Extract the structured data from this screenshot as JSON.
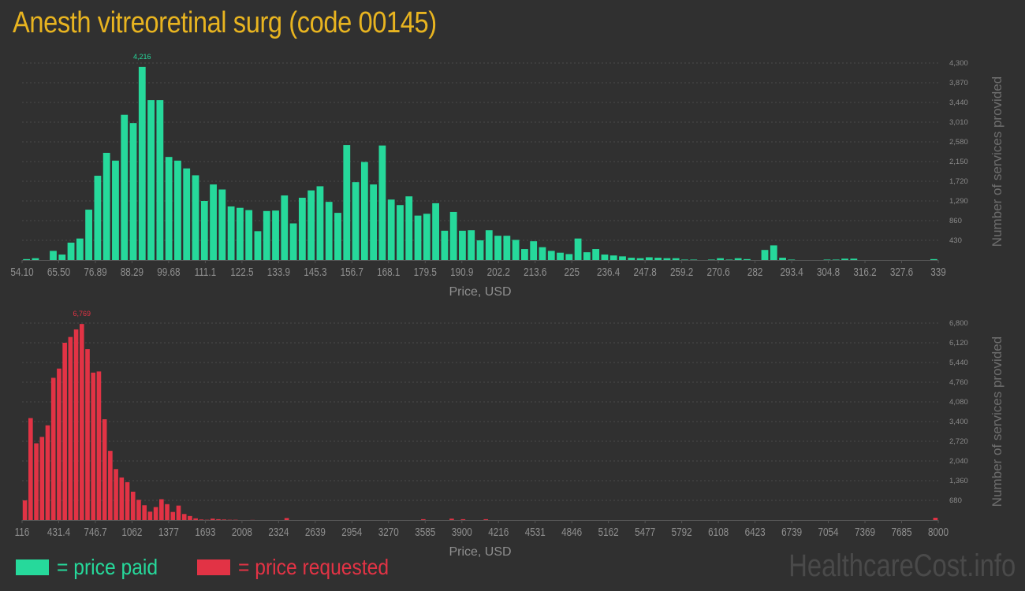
{
  "title": "Anesth vitreoretinal surg (code 00145)",
  "legend": {
    "paid_label": "= price paid",
    "requested_label": "= price requested",
    "paid_color": "#26d99b",
    "requested_color": "#e23345"
  },
  "watermark": "HealthcareCost.info",
  "chart_data": [
    {
      "type": "bar",
      "name": "price paid",
      "color": "#26d99b",
      "xlabel": "Price, USD",
      "ylabel": "Number of services provided",
      "x_tick_labels": [
        "54.10",
        "65.50",
        "76.89",
        "88.29",
        "99.68",
        "111.1",
        "122.5",
        "133.9",
        "145.3",
        "156.7",
        "168.1",
        "179.5",
        "190.9",
        "202.2",
        "213.6",
        "225",
        "236.4",
        "247.8",
        "259.2",
        "270.6",
        "282",
        "293.4",
        "304.8",
        "316.2",
        "327.6",
        "339"
      ],
      "y_ticks": [
        430,
        860,
        1290,
        1720,
        2150,
        2580,
        3010,
        3440,
        3870,
        4300
      ],
      "ylim": [
        0,
        4300
      ],
      "max_label": "4,216",
      "values": [
        20,
        40,
        0,
        200,
        120,
        380,
        470,
        1100,
        1840,
        2340,
        2170,
        3170,
        2990,
        4216,
        3490,
        3490,
        2250,
        2170,
        2000,
        1850,
        1290,
        1650,
        1540,
        1170,
        1140,
        1090,
        630,
        1070,
        1080,
        1410,
        800,
        1360,
        1520,
        1610,
        1270,
        1030,
        2510,
        1700,
        2140,
        1650,
        2500,
        1320,
        1200,
        1390,
        970,
        1010,
        1240,
        640,
        1050,
        640,
        650,
        430,
        650,
        530,
        530,
        440,
        240,
        410,
        280,
        200,
        160,
        130,
        470,
        170,
        240,
        120,
        100,
        80,
        50,
        40,
        60,
        50,
        40,
        40,
        10,
        10,
        0,
        10,
        40,
        10,
        40,
        20,
        0,
        220,
        320,
        50,
        10,
        0,
        0,
        0,
        10,
        10,
        30,
        30,
        0,
        0,
        0,
        0,
        0,
        0,
        0,
        0,
        20
      ],
      "grid": true
    },
    {
      "type": "bar",
      "name": "price requested",
      "color": "#e23345",
      "xlabel": "Price, USD",
      "ylabel": "Number of services provided",
      "x_tick_labels": [
        "116",
        "431.4",
        "746.7",
        "1062",
        "1377",
        "1693",
        "2008",
        "2324",
        "2639",
        "2954",
        "3270",
        "3585",
        "3900",
        "4216",
        "4531",
        "4846",
        "5162",
        "5477",
        "5792",
        "6108",
        "6423",
        "6739",
        "7054",
        "7369",
        "7685",
        "8000"
      ],
      "y_ticks": [
        680,
        1360,
        2040,
        2720,
        3400,
        4080,
        4760,
        5440,
        6120,
        6800
      ],
      "ylim": [
        0,
        6800
      ],
      "max_label": "6,769",
      "values": [
        680,
        3520,
        2650,
        2870,
        3270,
        4910,
        5230,
        6120,
        6320,
        6580,
        6769,
        5900,
        5090,
        5130,
        3480,
        2390,
        1760,
        1470,
        1310,
        980,
        700,
        510,
        290,
        450,
        720,
        550,
        280,
        500,
        210,
        140,
        60,
        20,
        10,
        50,
        30,
        20,
        10,
        10,
        0,
        0,
        5,
        0,
        0,
        0,
        0,
        0,
        70,
        0,
        0,
        0,
        0,
        0,
        0,
        0,
        0,
        0,
        0,
        0,
        0,
        0,
        0,
        0,
        0,
        0,
        0,
        0,
        0,
        0,
        0,
        0,
        30,
        0,
        0,
        0,
        0,
        50,
        0,
        30,
        0,
        0,
        0,
        30,
        0,
        0,
        0,
        0,
        0,
        0,
        0,
        0,
        0,
        0,
        0,
        0,
        0,
        0,
        0,
        0,
        0,
        0,
        0,
        0,
        0,
        0,
        0,
        0,
        0,
        0,
        0,
        0,
        0,
        0,
        0,
        0,
        0,
        0,
        0,
        0,
        0,
        0,
        0,
        0,
        0,
        0,
        0,
        0,
        0,
        0,
        0,
        0,
        0,
        0,
        0,
        0,
        0,
        0,
        0,
        0,
        0,
        0,
        0,
        0,
        0,
        0,
        0,
        0,
        0,
        0,
        0,
        0,
        0,
        0,
        0,
        0,
        0,
        0,
        0,
        0,
        0,
        0,
        80
      ],
      "grid": true
    }
  ]
}
